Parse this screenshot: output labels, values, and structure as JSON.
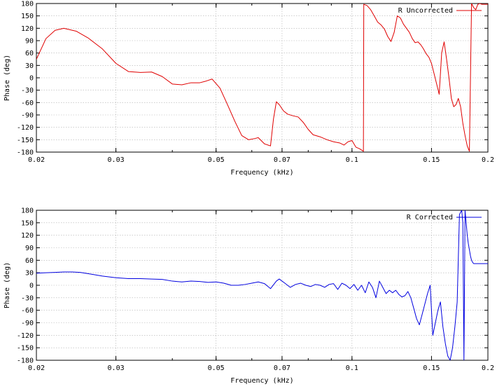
{
  "chart_data": [
    {
      "type": "line",
      "title": "",
      "xlabel": "Frequency (kHz)",
      "ylabel": "Phase (deg)",
      "xscale": "log",
      "xlim": [
        0.02,
        0.2
      ],
      "ylim": [
        -180,
        180
      ],
      "x_ticks": [
        "0.02",
        "0.03",
        "0.05",
        "0.07",
        "0.1",
        "0.15",
        "0.2"
      ],
      "x_tick_values": [
        0.02,
        0.03,
        0.05,
        0.07,
        0.1,
        0.15,
        0.2
      ],
      "y_ticks": [
        "180",
        "150",
        "120",
        "90",
        "60",
        "30",
        "0",
        "-30",
        "-60",
        "-90",
        "-120",
        "-150",
        "-180"
      ],
      "y_tick_values": [
        180,
        150,
        120,
        90,
        60,
        30,
        0,
        -30,
        -60,
        -90,
        -120,
        -150,
        -180
      ],
      "legend_position": "top-right",
      "grid": true,
      "series": [
        {
          "name": "R Uncorrected",
          "color": "#e00000",
          "x": [
            0.02,
            0.021,
            0.022,
            0.023,
            0.0245,
            0.026,
            0.028,
            0.03,
            0.032,
            0.034,
            0.036,
            0.038,
            0.04,
            0.042,
            0.044,
            0.046,
            0.0475,
            0.049,
            0.051,
            0.053,
            0.055,
            0.057,
            0.059,
            0.061,
            0.062,
            0.064,
            0.066,
            0.067,
            0.068,
            0.069,
            0.0705,
            0.072,
            0.074,
            0.076,
            0.078,
            0.08,
            0.082,
            0.085,
            0.088,
            0.091,
            0.094,
            0.096,
            0.098,
            0.1,
            0.102,
            0.104,
            0.106,
            0.1062,
            0.108,
            0.11,
            0.112,
            0.114,
            0.116,
            0.118,
            0.12,
            0.122,
            0.124,
            0.126,
            0.128,
            0.13,
            0.132,
            0.134,
            0.136,
            0.138,
            0.14,
            0.142,
            0.144,
            0.146,
            0.148,
            0.15,
            0.152,
            0.154,
            0.156,
            0.158,
            0.16,
            0.162,
            0.164,
            0.166,
            0.168,
            0.17,
            0.172,
            0.174,
            0.176,
            0.178,
            0.18,
            0.182,
            0.184,
            0.186,
            0.188,
            0.19,
            0.192,
            0.194,
            0.196,
            0.198,
            0.2
          ],
          "y": [
            45,
            95,
            115,
            120,
            113,
            97,
            70,
            35,
            15,
            13,
            14,
            3,
            -15,
            -17,
            -12,
            -12,
            -8,
            -3,
            -25,
            -65,
            -105,
            -140,
            -150,
            -147,
            -145,
            -160,
            -165,
            -100,
            -58,
            -65,
            -80,
            -88,
            -92,
            -95,
            -108,
            -125,
            -138,
            -143,
            -150,
            -155,
            -158,
            -163,
            -155,
            -152,
            -168,
            -172,
            -178,
            178,
            175,
            165,
            150,
            135,
            128,
            118,
            100,
            88,
            110,
            150,
            145,
            130,
            120,
            110,
            95,
            85,
            87,
            80,
            70,
            58,
            50,
            35,
            10,
            -15,
            -40,
            60,
            87,
            45,
            0,
            -50,
            -70,
            -65,
            -50,
            -70,
            -110,
            -140,
            -165,
            -178,
            180,
            170,
            165,
            178,
            180,
            178,
            178,
            178,
            178
          ]
        }
      ]
    },
    {
      "type": "line",
      "title": "",
      "xlabel": "Frequency (kHz)",
      "ylabel": "Phase (deg)",
      "xscale": "log",
      "xlim": [
        0.02,
        0.2
      ],
      "ylim": [
        -180,
        180
      ],
      "x_ticks": [
        "0.02",
        "0.03",
        "0.05",
        "0.07",
        "0.1",
        "0.15",
        "0.2"
      ],
      "x_tick_values": [
        0.02,
        0.03,
        0.05,
        0.07,
        0.1,
        0.15,
        0.2
      ],
      "y_ticks": [
        "180",
        "150",
        "120",
        "90",
        "60",
        "30",
        "0",
        "-30",
        "-60",
        "-90",
        "-120",
        "-150",
        "-180"
      ],
      "y_tick_values": [
        180,
        150,
        120,
        90,
        60,
        30,
        0,
        -30,
        -60,
        -90,
        -120,
        -150,
        -180
      ],
      "legend_position": "top-right",
      "grid": true,
      "series": [
        {
          "name": "R Corrected",
          "color": "#0000e0",
          "x": [
            0.02,
            0.021,
            0.022,
            0.023,
            0.024,
            0.025,
            0.026,
            0.027,
            0.028,
            0.03,
            0.032,
            0.034,
            0.036,
            0.038,
            0.04,
            0.042,
            0.044,
            0.046,
            0.048,
            0.05,
            0.052,
            0.054,
            0.056,
            0.058,
            0.06,
            0.062,
            0.064,
            0.066,
            0.068,
            0.069,
            0.071,
            0.073,
            0.075,
            0.077,
            0.079,
            0.081,
            0.083,
            0.085,
            0.087,
            0.089,
            0.091,
            0.093,
            0.095,
            0.097,
            0.099,
            0.101,
            0.103,
            0.105,
            0.107,
            0.109,
            0.111,
            0.113,
            0.115,
            0.117,
            0.119,
            0.121,
            0.123,
            0.125,
            0.127,
            0.129,
            0.131,
            0.133,
            0.135,
            0.137,
            0.139,
            0.141,
            0.143,
            0.145,
            0.147,
            0.149,
            0.151,
            0.153,
            0.155,
            0.157,
            0.159,
            0.161,
            0.163,
            0.165,
            0.167,
            0.169,
            0.171,
            0.173,
            0.175,
            0.176,
            0.177,
            0.178,
            0.179,
            0.18,
            0.181,
            0.182,
            0.183,
            0.184,
            0.185,
            0.186,
            0.188,
            0.19,
            0.192,
            0.194,
            0.196,
            0.198,
            0.2
          ],
          "y": [
            29,
            30,
            31,
            32,
            32,
            31,
            28,
            25,
            22,
            18,
            16,
            16,
            15,
            14,
            10,
            8,
            10,
            9,
            7,
            8,
            5,
            0,
            0,
            2,
            5,
            8,
            4,
            -8,
            10,
            15,
            5,
            -5,
            2,
            5,
            0,
            -3,
            2,
            0,
            -5,
            2,
            4,
            -10,
            5,
            0,
            -8,
            2,
            -12,
            0,
            -18,
            8,
            -5,
            -30,
            10,
            -5,
            -20,
            -12,
            -18,
            -12,
            -22,
            -28,
            -25,
            -15,
            -30,
            -55,
            -80,
            -95,
            -70,
            -45,
            -20,
            0,
            -120,
            -90,
            -60,
            -40,
            -100,
            -140,
            -170,
            -180,
            -150,
            -100,
            -40,
            170,
            180,
            150,
            -180,
            180,
            150,
            120,
            100,
            85,
            70,
            60,
            55,
            52,
            52,
            52,
            52,
            52,
            52,
            52,
            52
          ]
        }
      ]
    }
  ]
}
